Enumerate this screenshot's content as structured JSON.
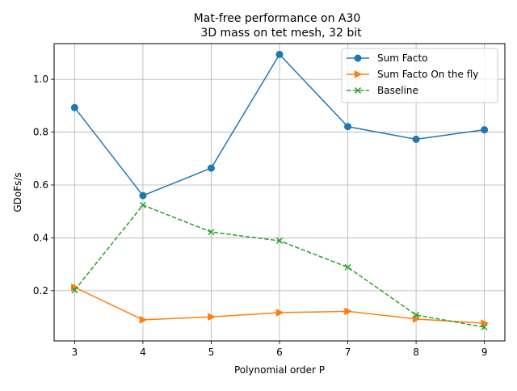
{
  "chart_data": {
    "type": "line",
    "title": "Mat-free performance on A30",
    "subtitle": "3D mass on tet mesh, 32 bit",
    "xlabel": "Polynomial order P",
    "ylabel": "GDoFs/s",
    "x": [
      3,
      4,
      5,
      6,
      7,
      8,
      9
    ],
    "xticks": [
      "3",
      "4",
      "5",
      "6",
      "7",
      "8",
      "9"
    ],
    "yticks": [
      "0.2",
      "0.4",
      "0.6",
      "0.8",
      "1.0"
    ],
    "ytick_values": [
      0.2,
      0.4,
      0.6,
      0.8,
      1.0
    ],
    "xlim": [
      2.7,
      9.3
    ],
    "ylim": [
      0.01,
      1.135
    ],
    "grid": true,
    "legend_position": "top-right",
    "series": [
      {
        "name": "Sum Facto",
        "color": "#1f77b4",
        "linestyle": "solid",
        "marker": "circle",
        "values": [
          0.893,
          0.56,
          0.664,
          1.094,
          0.821,
          0.773,
          0.809
        ]
      },
      {
        "name": "Sum Facto On the fly",
        "color": "#ff7f0e",
        "linestyle": "solid",
        "marker": "triangle-right",
        "values": [
          0.213,
          0.09,
          0.101,
          0.117,
          0.122,
          0.093,
          0.077
        ]
      },
      {
        "name": "Baseline",
        "color": "#2ca02c",
        "linestyle": "dashed",
        "marker": "x",
        "values": [
          0.202,
          0.524,
          0.422,
          0.389,
          0.289,
          0.108,
          0.062
        ]
      }
    ]
  }
}
